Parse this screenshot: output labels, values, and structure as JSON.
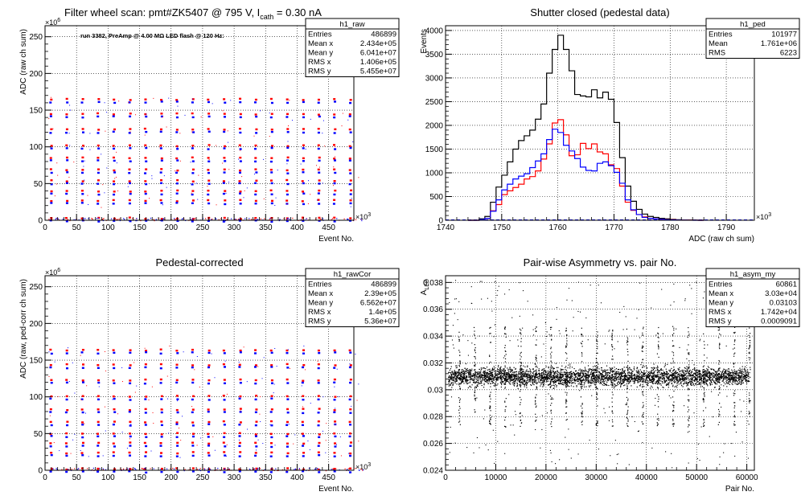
{
  "chart_data": [
    {
      "id": "p1",
      "type": "scatter",
      "title": "Filter wheel scan: pmt#ZK5407 @   795 V, I",
      "title_sub": "cath",
      "title_tail": " = 0.30 nA",
      "xlabel": "Event No.",
      "ylabel": "ADC (raw ch sum)",
      "x_multiplier": "×10",
      "x_multiplier_exp": "3",
      "y_multiplier": "×10",
      "y_multiplier_exp": "6",
      "xlim": [
        0,
        490
      ],
      "ylim": [
        0,
        265
      ],
      "xticks": [
        0,
        50,
        100,
        150,
        200,
        250,
        300,
        350,
        400,
        450
      ],
      "yticks": [
        0,
        50,
        100,
        150,
        200,
        250
      ],
      "grid": true,
      "annotation": "run 3382, PreAmp @ 4.00 MΩ LED flash @  120 Hz:",
      "series_colors": [
        "#ff0000",
        "#0000ff"
      ],
      "band_levels": [
        1,
        25,
        38,
        52,
        67,
        83,
        100,
        122,
        143,
        163
      ],
      "burst_period": 25,
      "stats": {
        "title": "h1_raw",
        "rows": [
          {
            "label": "Entries",
            "value": "486899"
          },
          {
            "label": "Mean x",
            "value": "2.434e+05"
          },
          {
            "label": "Mean y",
            "value": "6.041e+07"
          },
          {
            "label": "RMS x",
            "value": "1.406e+05"
          },
          {
            "label": "RMS y",
            "value": "5.455e+07"
          }
        ]
      }
    },
    {
      "id": "p2",
      "type": "histogram",
      "title": "Shutter closed (pedestal data)",
      "xlabel": "ADC (raw ch sum)",
      "ylabel": "Events",
      "x_multiplier": "×10",
      "x_multiplier_exp": "3",
      "xlim": [
        1740,
        1795
      ],
      "ylim": [
        0,
        4100
      ],
      "xticks": [
        1740,
        1750,
        1760,
        1770,
        1780,
        1790
      ],
      "yticks": [
        0,
        500,
        1000,
        1500,
        2000,
        2500,
        3000,
        3500,
        4000
      ],
      "grid": true,
      "bin_width": 1,
      "x_start": 1744,
      "series": [
        {
          "color": "#000000",
          "values": [
            0,
            0,
            30,
            80,
            380,
            700,
            950,
            1230,
            1500,
            1680,
            1780,
            1900,
            2130,
            2450,
            3100,
            3600,
            3900,
            3600,
            3150,
            2650,
            2620,
            2600,
            2750,
            2580,
            2700,
            2550,
            2060,
            1320,
            720,
            400,
            230,
            130,
            80,
            60,
            40,
            30,
            20,
            10,
            6,
            4,
            2,
            0
          ]
        },
        {
          "color": "#ff0000",
          "values": [
            0,
            0,
            15,
            40,
            200,
            330,
            540,
            620,
            690,
            760,
            870,
            920,
            1040,
            1290,
            1610,
            2050,
            2120,
            1800,
            1360,
            1380,
            1620,
            1510,
            1610,
            1440,
            1400,
            1170,
            1090,
            720,
            380,
            210,
            120,
            70,
            40,
            30,
            20,
            15,
            10,
            5,
            3,
            2,
            1,
            0
          ]
        },
        {
          "color": "#0000ff",
          "values": [
            0,
            0,
            15,
            40,
            190,
            430,
            640,
            760,
            870,
            930,
            980,
            1110,
            1250,
            1400,
            1700,
            1920,
            1850,
            1580,
            1460,
            1300,
            1120,
            1050,
            1040,
            1200,
            1230,
            1150,
            1010,
            780,
            430,
            220,
            120,
            60,
            40,
            30,
            20,
            10,
            6,
            4,
            2,
            1,
            0,
            0
          ]
        }
      ],
      "stats": {
        "title": "h1_ped",
        "rows": [
          {
            "label": "Entries",
            "value": "101977"
          },
          {
            "label": "Mean",
            "value": "1.761e+06"
          },
          {
            "label": "RMS",
            "value": "6223"
          }
        ]
      }
    },
    {
      "id": "p3",
      "type": "scatter",
      "title": "Pedestal-corrected",
      "xlabel": "Event No.",
      "ylabel": "ADC (raw, ped-corr ch sum)",
      "x_multiplier": "×10",
      "x_multiplier_exp": "3",
      "y_multiplier": "×10",
      "y_multiplier_exp": "6",
      "xlim": [
        0,
        490
      ],
      "ylim": [
        0,
        265
      ],
      "xticks": [
        0,
        50,
        100,
        150,
        200,
        250,
        300,
        350,
        400,
        450
      ],
      "yticks": [
        0,
        50,
        100,
        150,
        200,
        250
      ],
      "grid": true,
      "series_colors": [
        "#ff0000",
        "#0000ff"
      ],
      "band_levels": [
        0,
        22,
        35,
        48,
        64,
        81,
        99,
        121,
        142,
        162
      ],
      "burst_period": 25,
      "stats": {
        "title": "h1_rawCor",
        "rows": [
          {
            "label": "Entries",
            "value": "486899"
          },
          {
            "label": "Mean x",
            "value": "2.39e+05"
          },
          {
            "label": "Mean y",
            "value": "6.562e+07"
          },
          {
            "label": "RMS x",
            "value": "1.4e+05"
          },
          {
            "label": "RMS y",
            "value": "5.36e+07"
          }
        ]
      }
    },
    {
      "id": "p4",
      "type": "scatter",
      "title": "Pair-wise Asymmetry vs. pair No.",
      "xlabel": "Pair No.",
      "ylabel": "A",
      "ylabel_sub": "LED",
      "xlim": [
        0,
        61500
      ],
      "ylim": [
        0.024,
        0.0385
      ],
      "xticks": [
        0,
        10000,
        20000,
        30000,
        40000,
        50000,
        60000
      ],
      "yticks": [
        0.024,
        0.026,
        0.028,
        0.03,
        0.032,
        0.034,
        0.036,
        0.038
      ],
      "grid": true,
      "center": 0.031,
      "spread": 0.0003,
      "spike_period": 3040,
      "series_colors": [
        "#000000"
      ],
      "stats": {
        "title": "h1_asym_my",
        "rows": [
          {
            "label": "Entries",
            "value": "60861"
          },
          {
            "label": "Mean x",
            "value": "3.03e+04"
          },
          {
            "label": "Mean y",
            "value": "0.03103"
          },
          {
            "label": "RMS x",
            "value": "1.742e+04"
          },
          {
            "label": "RMS y",
            "value": "0.0009091"
          }
        ]
      }
    }
  ]
}
